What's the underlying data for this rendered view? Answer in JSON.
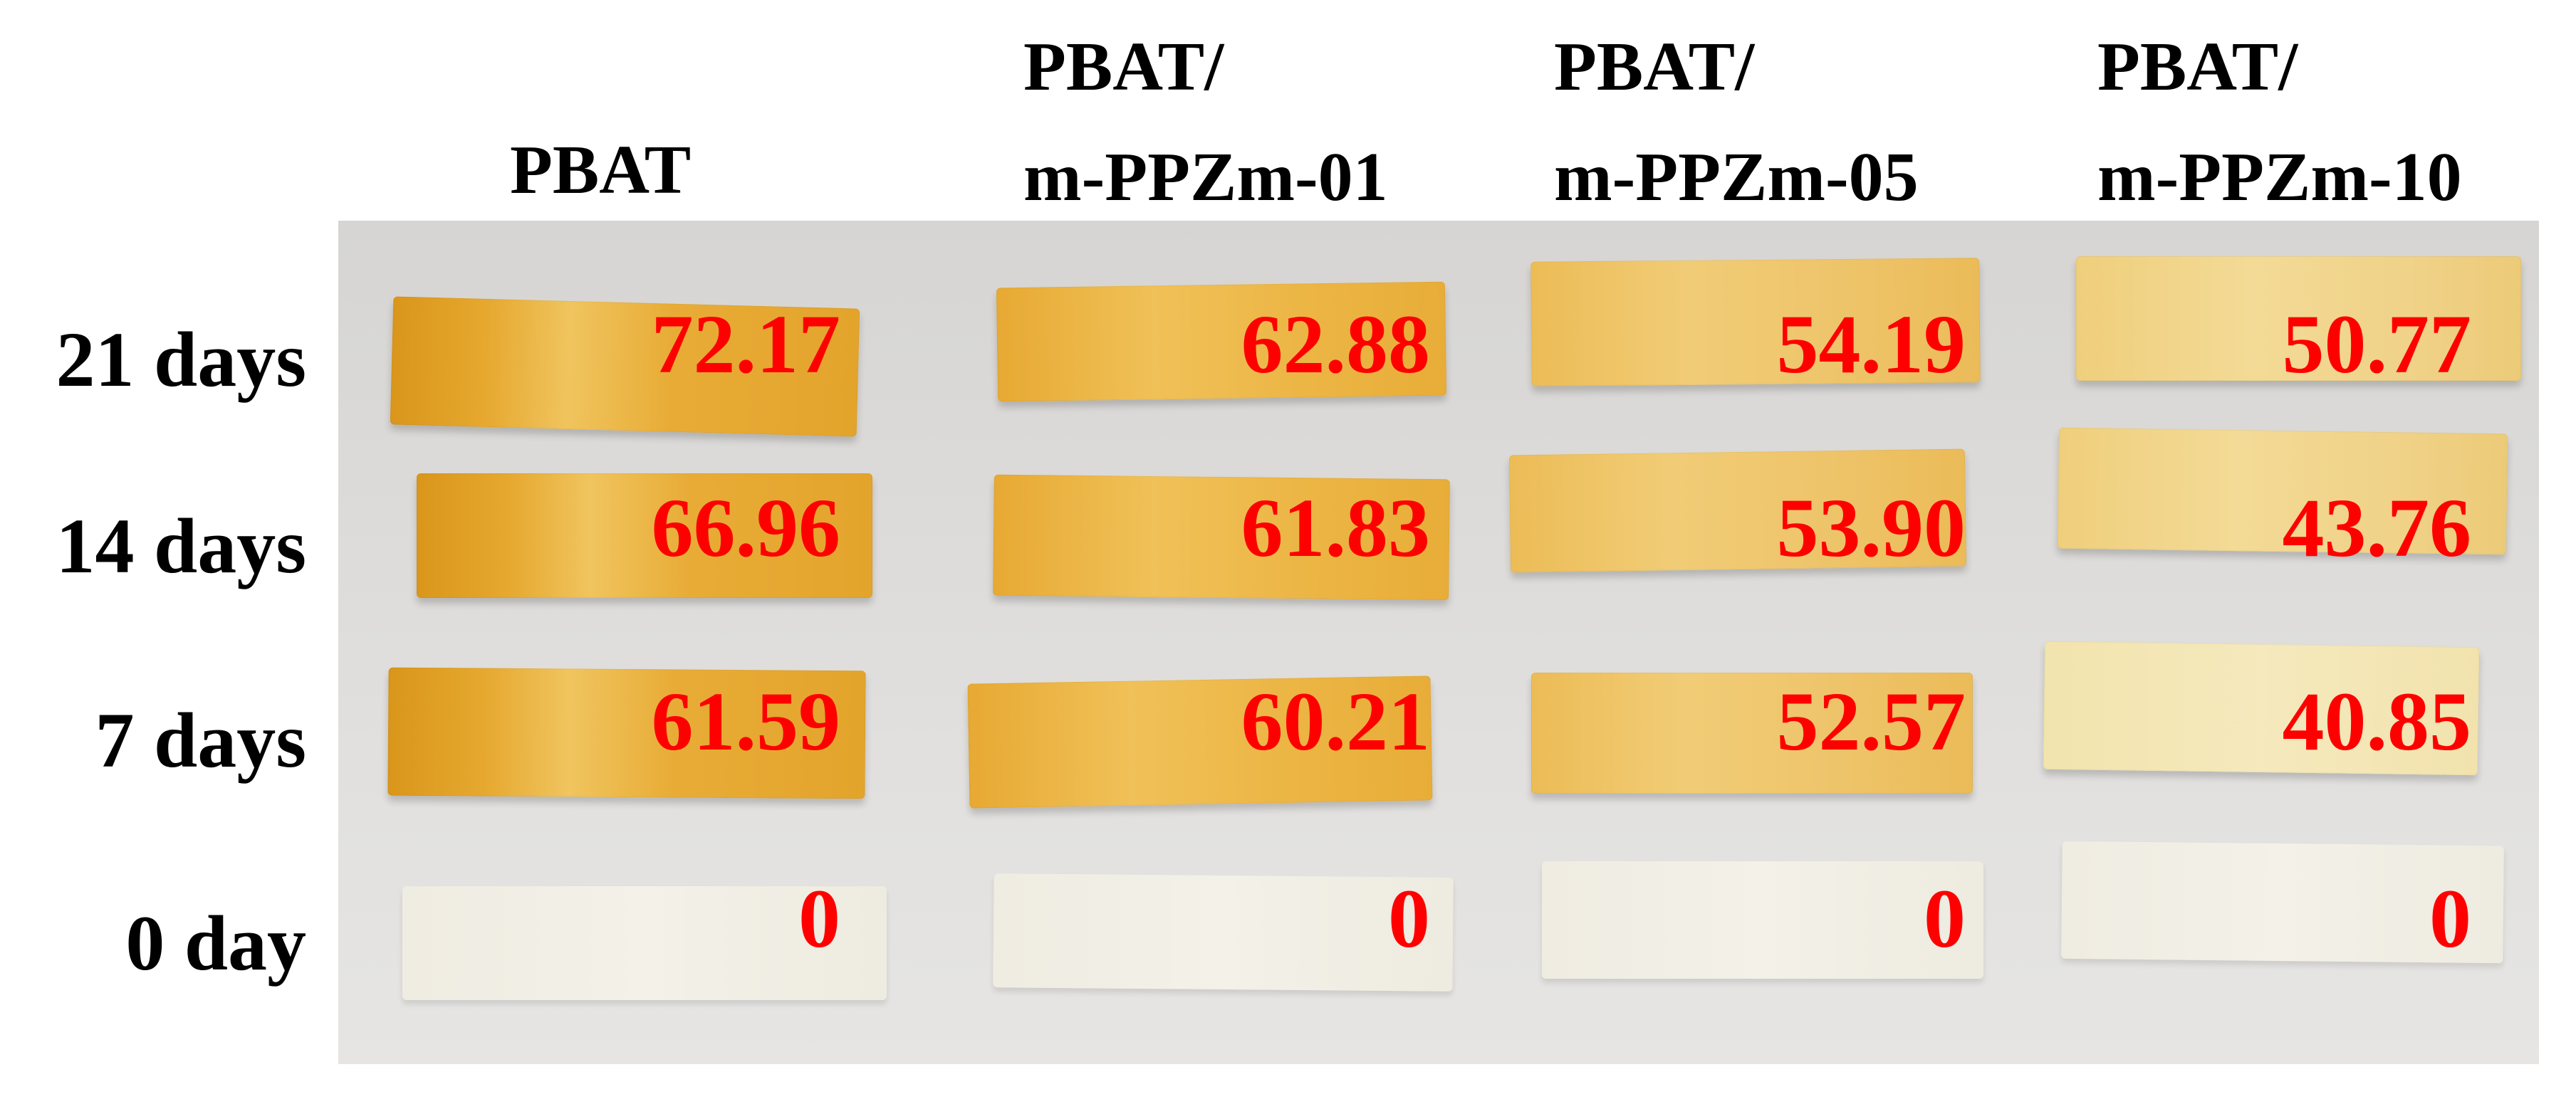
{
  "column_headers": [
    {
      "line1": "",
      "line2": "PBAT"
    },
    {
      "line1": "PBAT/",
      "line2": "m-PPZm-01"
    },
    {
      "line1": "PBAT/",
      "line2": "m-PPZm-05"
    },
    {
      "line1": "PBAT/",
      "line2": "m-PPZm-10"
    }
  ],
  "row_labels": [
    "21 days",
    "14 days",
    "7 days",
    "0 day"
  ],
  "values": [
    [
      "72.17",
      "62.88",
      "54.19",
      "50.77"
    ],
    [
      "66.96",
      "61.83",
      "53.90",
      "43.76"
    ],
    [
      "61.59",
      "60.21",
      "52.57",
      "40.85"
    ],
    [
      "0",
      "0",
      "0",
      "0"
    ]
  ],
  "colors": {
    "value_text": "#ff0000",
    "label_text": "#000000",
    "background": "#ffffff",
    "photo_background": "#dcdbd9",
    "strip_degraded": "#e6a82f",
    "strip_undegraded": "#f1efe6"
  }
}
